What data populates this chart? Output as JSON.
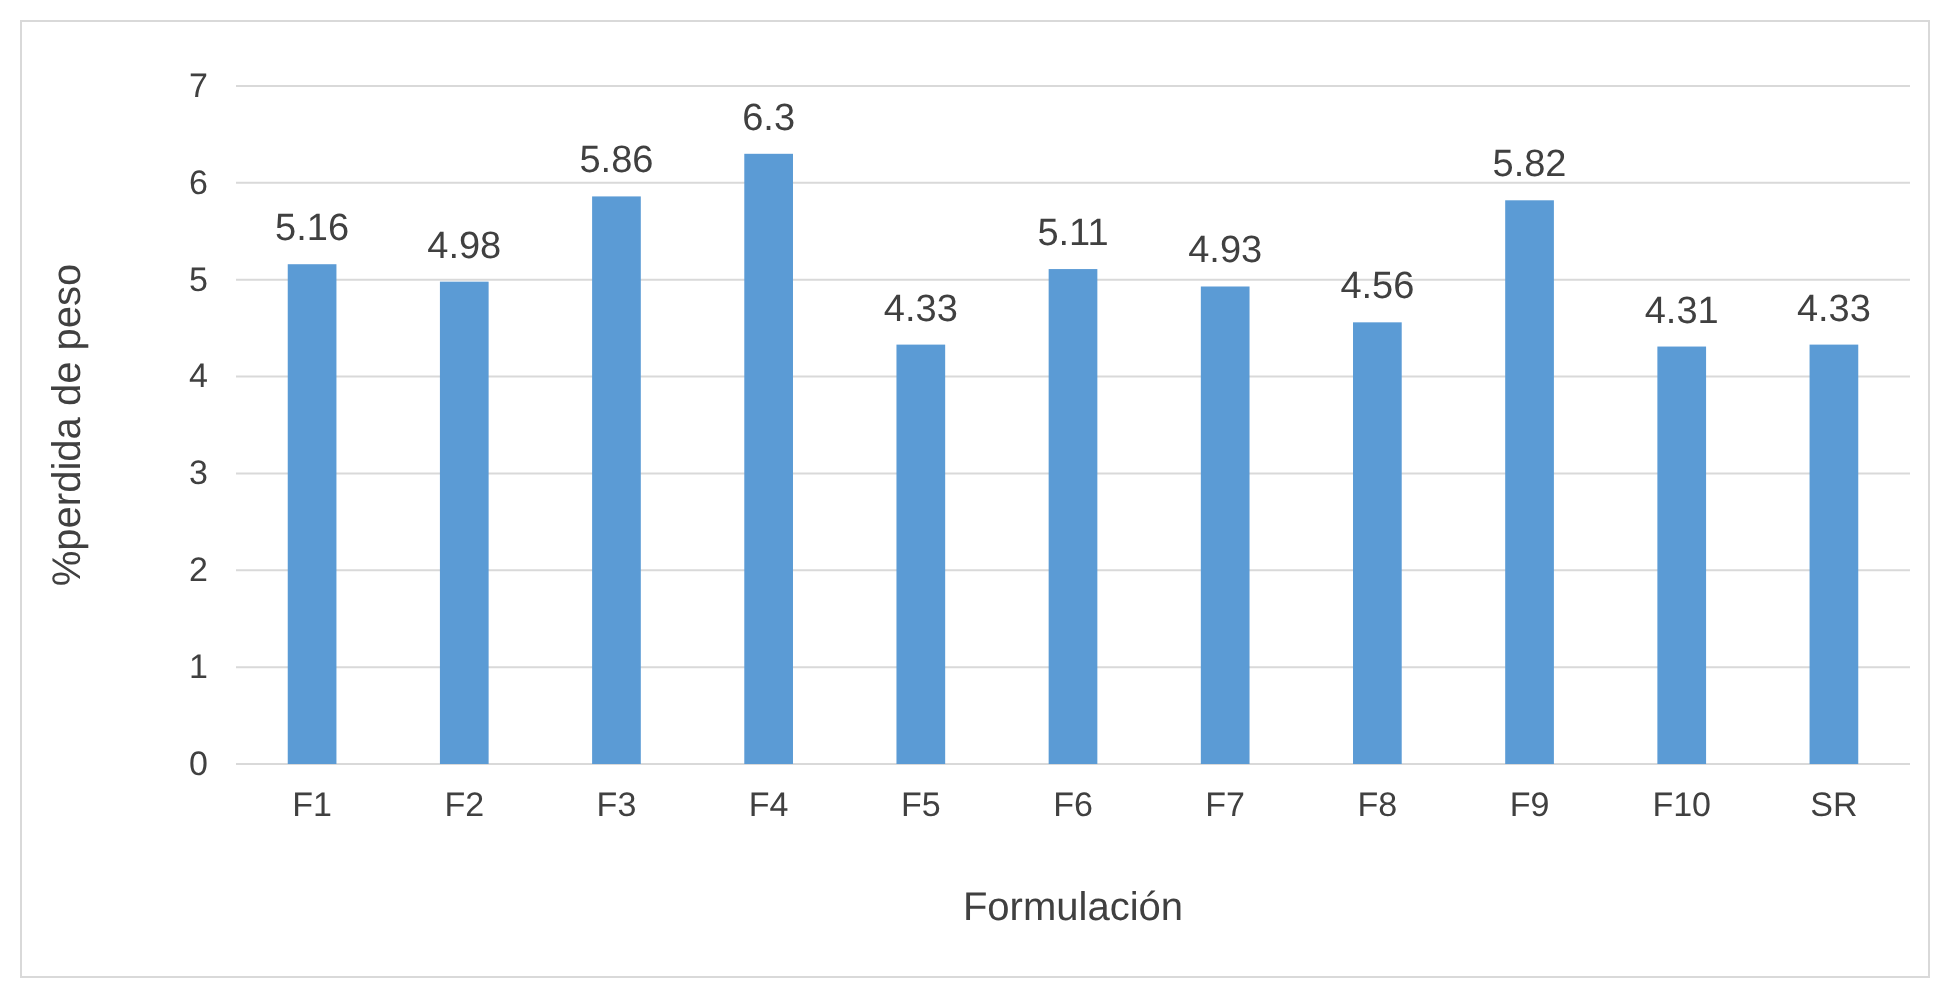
{
  "chart_data": {
    "type": "bar",
    "xlabel": "Formulación",
    "ylabel": "%perdida de peso",
    "categories": [
      "F1",
      "F2",
      "F3",
      "F4",
      "F5",
      "F6",
      "F7",
      "F8",
      "F9",
      "F10",
      "SR"
    ],
    "values": [
      5.16,
      4.98,
      5.86,
      6.3,
      4.33,
      5.11,
      4.93,
      4.56,
      5.82,
      4.31,
      4.33
    ],
    "color": "#5b9bd5",
    "ylim": [
      0,
      7
    ],
    "yticks": [
      0,
      1,
      2,
      3,
      4,
      5,
      6,
      7
    ],
    "grid": "y",
    "data_labels": true
  }
}
